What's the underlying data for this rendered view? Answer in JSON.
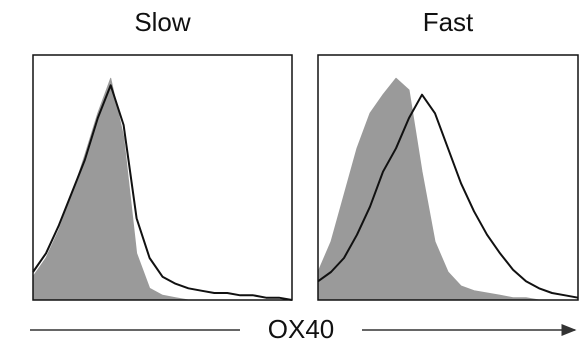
{
  "chart_data": [
    {
      "type": "area",
      "title": "Slow",
      "x": [
        0,
        5,
        10,
        15,
        20,
        25,
        30,
        35,
        40,
        45,
        50,
        55,
        60,
        65,
        70,
        75,
        80,
        85,
        90,
        95,
        100
      ],
      "xlim": [
        0,
        100
      ],
      "ylim": [
        0,
        105
      ],
      "series": [
        {
          "color": "#9a9a9a",
          "fill": true,
          "values": [
            10,
            18,
            30,
            45,
            62,
            80,
            95,
            70,
            20,
            5,
            2,
            1,
            0,
            0,
            0,
            0,
            0,
            0,
            0,
            0,
            0
          ]
        },
        {
          "color": "#111111",
          "fill": false,
          "values": [
            12,
            20,
            32,
            46,
            60,
            78,
            92,
            75,
            35,
            18,
            10,
            7,
            5,
            4,
            3,
            3,
            2,
            2,
            1,
            1,
            0
          ]
        }
      ]
    },
    {
      "type": "area",
      "title": "Fast",
      "x": [
        0,
        5,
        10,
        15,
        20,
        25,
        30,
        35,
        40,
        45,
        50,
        55,
        60,
        65,
        70,
        75,
        80,
        85,
        90,
        95,
        100
      ],
      "xlim": [
        0,
        100
      ],
      "ylim": [
        0,
        105
      ],
      "series": [
        {
          "color": "#9a9a9a",
          "fill": true,
          "values": [
            12,
            25,
            45,
            65,
            80,
            88,
            95,
            90,
            55,
            25,
            12,
            6,
            4,
            3,
            2,
            1,
            1,
            0,
            0,
            0,
            0
          ]
        },
        {
          "color": "#111111",
          "fill": false,
          "values": [
            8,
            12,
            18,
            28,
            40,
            55,
            65,
            78,
            88,
            80,
            65,
            50,
            38,
            28,
            20,
            13,
            8,
            5,
            3,
            2,
            1
          ]
        }
      ]
    }
  ],
  "xlabel": "OX40"
}
